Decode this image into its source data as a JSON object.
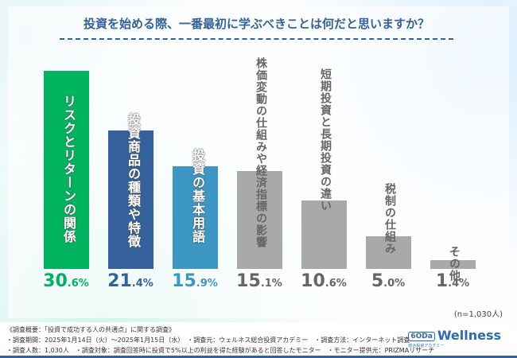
{
  "chart_data": {
    "type": "bar",
    "title": "投資を始める際、一番最初に学ぶべきことは何だと思いますか？",
    "categories": [
      "リスクとリターンの関係",
      "投資商品の種類や特徴",
      "投資の基本用語",
      "株価変動の仕組みや経済指標の影響",
      "短期投資と長期投資の違い",
      "税制の仕組み",
      "その他"
    ],
    "values": [
      30.6,
      21.4,
      15.9,
      15.1,
      10.6,
      5.0,
      1.4
    ],
    "value_labels": [
      "30.6%",
      "21.4%",
      "15.9%",
      "15.1%",
      "10.6%",
      "5.0%",
      "1.4%"
    ],
    "colors": [
      "#00b35f",
      "#34619c",
      "#3c97c4",
      "#a9a9a9",
      "#a9a9a9",
      "#a9a9a9",
      "#a9a9a9"
    ],
    "label_colors": [
      "#00b35f",
      "#34619c",
      "#3c97c4",
      "#666666",
      "#666666",
      "#666666",
      "#666666"
    ],
    "sample": "(n=1,030人)",
    "grid": false,
    "legend": "none"
  },
  "footer": {
    "lines": [
      "《調査概要：「投資で成功する人の共通点」に関する調査》",
      "・調査期間：2025年1月14日（火）～2025年1月15日（水）　・調査元：ウェルネス総合投資アカデミー　・調査方法：インターネット調査",
      "・調査人数：1,030人　・調査対象：調査回答時に投資で5%以上の利益を得た経験があると回答したモニター　・モニター提供元：PRIZMAリサーチ"
    ]
  },
  "logo": {
    "mark": "6ODa",
    "name": "Wellness",
    "sub": "総合投資アカデミー"
  }
}
